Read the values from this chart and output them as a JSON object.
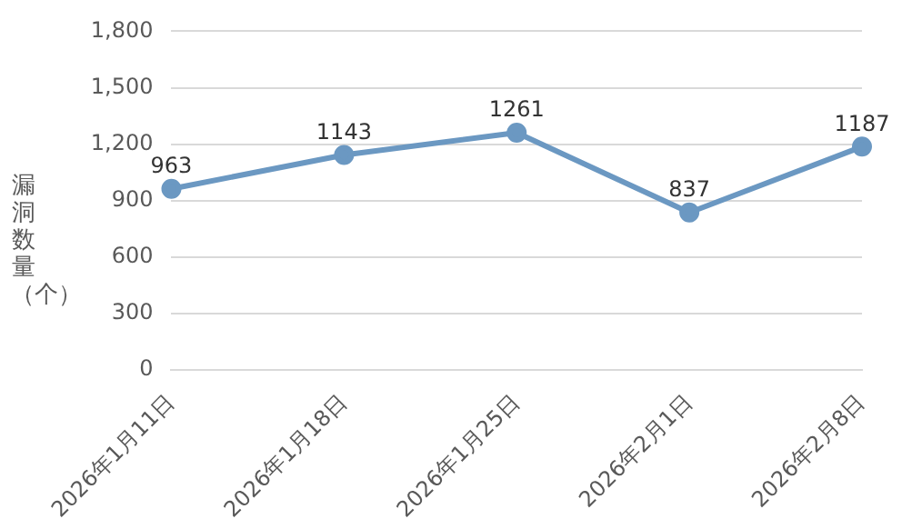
{
  "chart_data": {
    "type": "line",
    "ylabel": "漏洞数量（个）",
    "categories": [
      "2026年1月11日",
      "2026年1月18日",
      "2026年1月25日",
      "2026年2月1日",
      "2026年2月8日"
    ],
    "series": [
      {
        "color": "#6b98c2",
        "values": [
          963,
          1143,
          1261,
          837,
          1187
        ]
      }
    ],
    "ylim": [
      0,
      1800
    ],
    "yticks": [
      0,
      300,
      600,
      900,
      {
        "value": 1200,
        "label": "1,200"
      },
      {
        "value": 1500,
        "label": "1,500"
      },
      {
        "value": 1800,
        "label": "1,800"
      }
    ],
    "grid": "y",
    "marker": "circle",
    "line_style": "solid",
    "data_labels": true,
    "legend": false
  }
}
